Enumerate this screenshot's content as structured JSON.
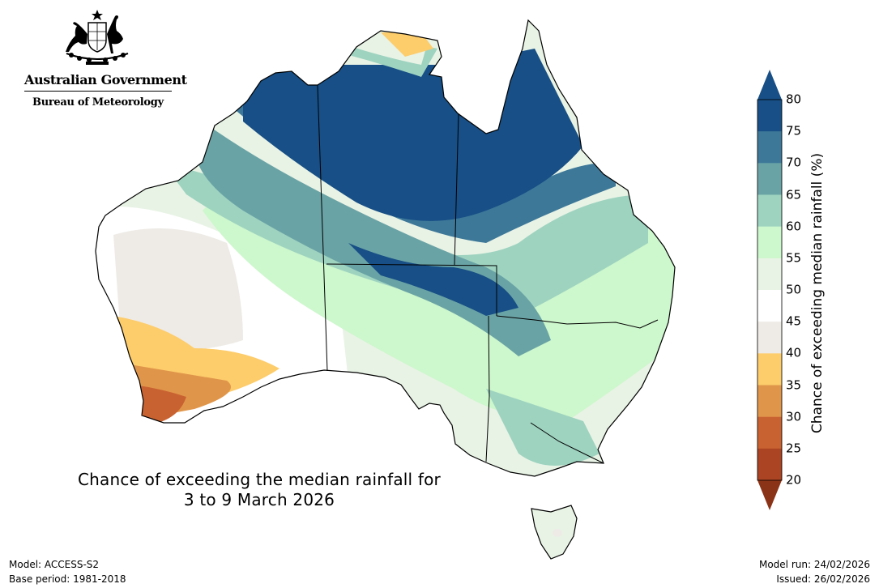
{
  "header": {
    "government": "Australian Government",
    "bureau": "Bureau of Meteorology"
  },
  "map": {
    "title_line1": "Chance of exceeding the median rainfall for",
    "title_line2": "3 to 9 March 2026",
    "legend": {
      "title": "Chance of exceeding median rainfall (%)",
      "ticks": [
        "80",
        "75",
        "70",
        "65",
        "60",
        "55",
        "50",
        "45",
        "40",
        "35",
        "30",
        "25",
        "20"
      ],
      "bands": [
        {
          "range": "75-80",
          "color": "#174f86"
        },
        {
          "range": "70-75",
          "color": "#3d7899"
        },
        {
          "range": "65-70",
          "color": "#6aa3a5"
        },
        {
          "range": "60-65",
          "color": "#9ed3c0"
        },
        {
          "range": "55-60",
          "color": "#cdf7cc"
        },
        {
          "range": "50-55",
          "color": "#e8f3e5"
        },
        {
          "range": "45-50",
          "color": "#ffffff"
        },
        {
          "range": "40-45",
          "color": "#eeebe6"
        },
        {
          "range": "35-40",
          "color": "#fdcc6b"
        },
        {
          "range": "30-35",
          "color": "#e0964a"
        },
        {
          "range": "25-30",
          "color": "#c96231"
        },
        {
          "range": "20-25",
          "color": "#ab4422"
        }
      ],
      "over_color": "#174f86",
      "under_color": "#8b3317"
    }
  },
  "footer": {
    "model": "Model: ACCESS-S2",
    "base_period": "Base period: 1981-2018",
    "model_run": "Model run: 24/02/2026",
    "issued": "Issued: 26/02/2026"
  }
}
